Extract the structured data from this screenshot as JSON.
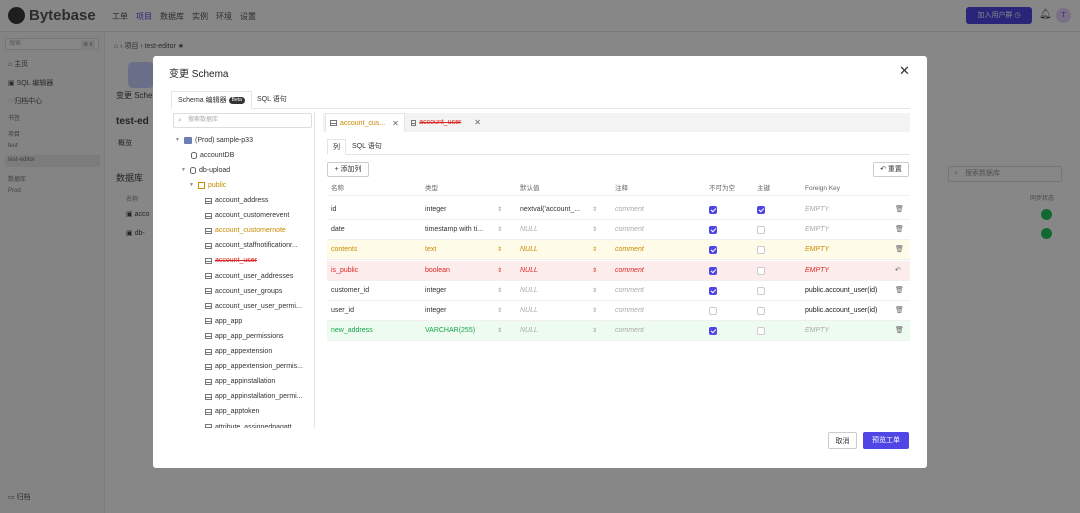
{
  "app": {
    "logo": "Bytebase",
    "nav": [
      "工单",
      "项目",
      "数据库",
      "实例",
      "环境",
      "设置"
    ],
    "nav_active": 1,
    "join_label": "加入用户群",
    "avatar_initial": "T"
  },
  "sidebar": {
    "search_placeholder": "搜索",
    "search_kbd": "⌘ K",
    "items": [
      "主页",
      "SQL 编辑器",
      "归档中心"
    ],
    "section_bookmarks": "书签",
    "section_projects": "项目",
    "projects": [
      "test",
      "test-editor"
    ],
    "section_databases": "数据库",
    "db_env": "Prod",
    "footer": "归档"
  },
  "background": {
    "breadcrumb": "项目  ›  test-editor",
    "project_title": "test-ed",
    "change_schema_short": "变更 Sche",
    "overview_tab": "概览",
    "db_heading": "数据库",
    "col_name": "名称",
    "search_db_placeholder": "搜索数据库",
    "sync_status": "同步状态",
    "db_rows": [
      "acco",
      "db-"
    ]
  },
  "modal": {
    "title": "变更 Schema",
    "tabs": [
      "Schema 编辑器",
      "SQL 语句"
    ],
    "beta": "Beta",
    "tree": {
      "search_placeholder": "搜索数据库",
      "instance": "(Prod) sample-p33",
      "databases": [
        "accountDB",
        "db-upload"
      ],
      "schema": "public",
      "tables": [
        "account_address",
        "account_customerevent",
        "account_customernote",
        "account_staffnotificationr...",
        "account_user",
        "account_user_addresses",
        "account_user_groups",
        "account_user_user_permi...",
        "app_app",
        "app_app_permissions",
        "app_appextension",
        "app_appextension_permis...",
        "app_appinstallation",
        "app_appinstallation_permi...",
        "app_apptoken",
        "attribute_assignedpagatt..."
      ]
    },
    "open_tabs": [
      "account_cus...",
      "account_user"
    ],
    "subtabs": [
      "列",
      "SQL 语句"
    ],
    "add_column": "添加列",
    "reset": "重置",
    "columns_header": [
      "名称",
      "类型",
      "默认值",
      "注释",
      "不可为空",
      "主键",
      "Foreign Key"
    ],
    "columns": [
      {
        "name": "id",
        "type": "integer",
        "default": "nextval('account_...",
        "comment": "comment",
        "not_null": true,
        "pk": true,
        "fk": "EMPTY",
        "state": "normal"
      },
      {
        "name": "date",
        "type": "timestamp with ti...",
        "default": "NULL",
        "comment": "comment",
        "not_null": true,
        "pk": false,
        "fk": "EMPTY",
        "state": "normal"
      },
      {
        "name": "contents",
        "type": "text",
        "default": "NULL",
        "comment": "comment",
        "not_null": true,
        "pk": false,
        "fk": "EMPTY",
        "state": "modified"
      },
      {
        "name": "is_public",
        "type": "boolean",
        "default": "NULL",
        "comment": "comment",
        "not_null": true,
        "pk": false,
        "fk": "EMPTY",
        "state": "dropped"
      },
      {
        "name": "customer_id",
        "type": "integer",
        "default": "NULL",
        "comment": "comment",
        "not_null": true,
        "pk": false,
        "fk": "public.account_user(id)",
        "state": "normal"
      },
      {
        "name": "user_id",
        "type": "integer",
        "default": "NULL",
        "comment": "comment",
        "not_null": false,
        "pk": false,
        "fk": "public.account_user(id)",
        "state": "normal"
      },
      {
        "name": "new_address",
        "type": "VARCHAR(255)",
        "default": "NULL",
        "comment": "comment",
        "not_null": true,
        "pk": false,
        "fk": "EMPTY",
        "state": "new"
      }
    ],
    "cancel": "取消",
    "preview": "预览工单"
  },
  "colors": {
    "accent": "#4f46e5",
    "modified": "#c88a00",
    "dropped": "#dc2626",
    "new": "#16a34a"
  }
}
